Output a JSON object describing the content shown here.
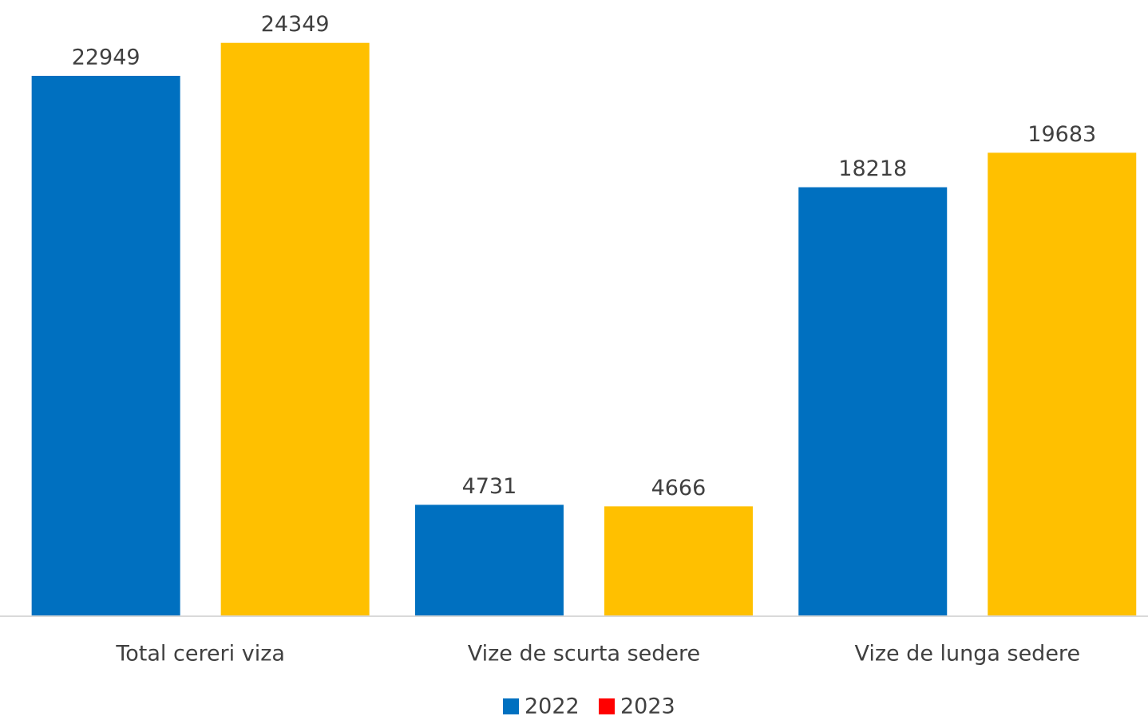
{
  "chart_data": {
    "type": "bar",
    "categories": [
      "Total cereri viza",
      "Vize de scurta sedere",
      "Vize de lunga sedere"
    ],
    "series": [
      {
        "name": "2022",
        "color": "#0070c0",
        "legend_color": "#0070c0",
        "values": [
          22949,
          4731,
          18218
        ]
      },
      {
        "name": "2023",
        "color": "#ffc000",
        "legend_color": "#ff0000",
        "values": [
          24349,
          4666,
          19683
        ]
      }
    ],
    "ylim": [
      0,
      26000
    ],
    "legend": "bottom"
  }
}
